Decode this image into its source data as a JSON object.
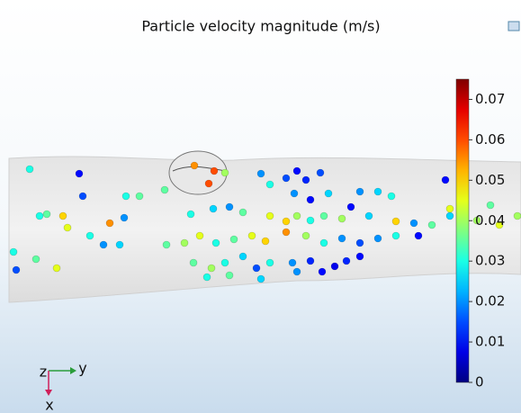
{
  "chart_data": {
    "type": "scatter",
    "title": "Particle velocity magnitude (m/s)",
    "colormap": "jet",
    "clim": [
      0,
      0.075
    ],
    "cticks": [
      0,
      0.01,
      0.02,
      0.03,
      0.04,
      0.05,
      0.06,
      0.07
    ],
    "values": [
      0.03,
      0.01,
      0.015,
      0.03,
      0.035,
      0.035,
      0.055,
      0.06,
      0.06,
      0.04,
      0.02,
      0.03,
      0.015,
      0.01,
      0.012,
      0.015,
      0.02,
      0.01,
      0.025,
      0.01,
      0.02,
      0.025,
      0.03,
      0.01,
      0.035,
      0.04,
      0.045,
      0.04,
      0.03,
      0.035,
      0.05,
      0.045,
      0.03,
      0.055,
      0.02,
      0.025,
      0.02,
      0.03,
      0.025,
      0.02,
      0.035,
      0.045,
      0.05,
      0.04,
      0.03,
      0.035,
      0.04,
      0.025,
      0.05,
      0.02,
      0.035,
      0.025,
      0.045,
      0.03,
      0.035,
      0.045,
      0.015,
      0.035,
      0.04,
      0.045,
      0.03,
      0.035,
      0.045,
      0.05,
      0.055,
      0.04,
      0.03,
      0.02,
      0.015,
      0.02,
      0.03,
      0.01,
      0.035,
      0.04,
      0.03,
      0.025,
      0.015,
      0.03,
      0.02,
      0.012,
      0.01,
      0.008,
      0.012,
      0.01,
      0.025,
      0.035,
      0.03,
      0.02
    ],
    "triad": [
      "z",
      "y",
      "x"
    ]
  }
}
